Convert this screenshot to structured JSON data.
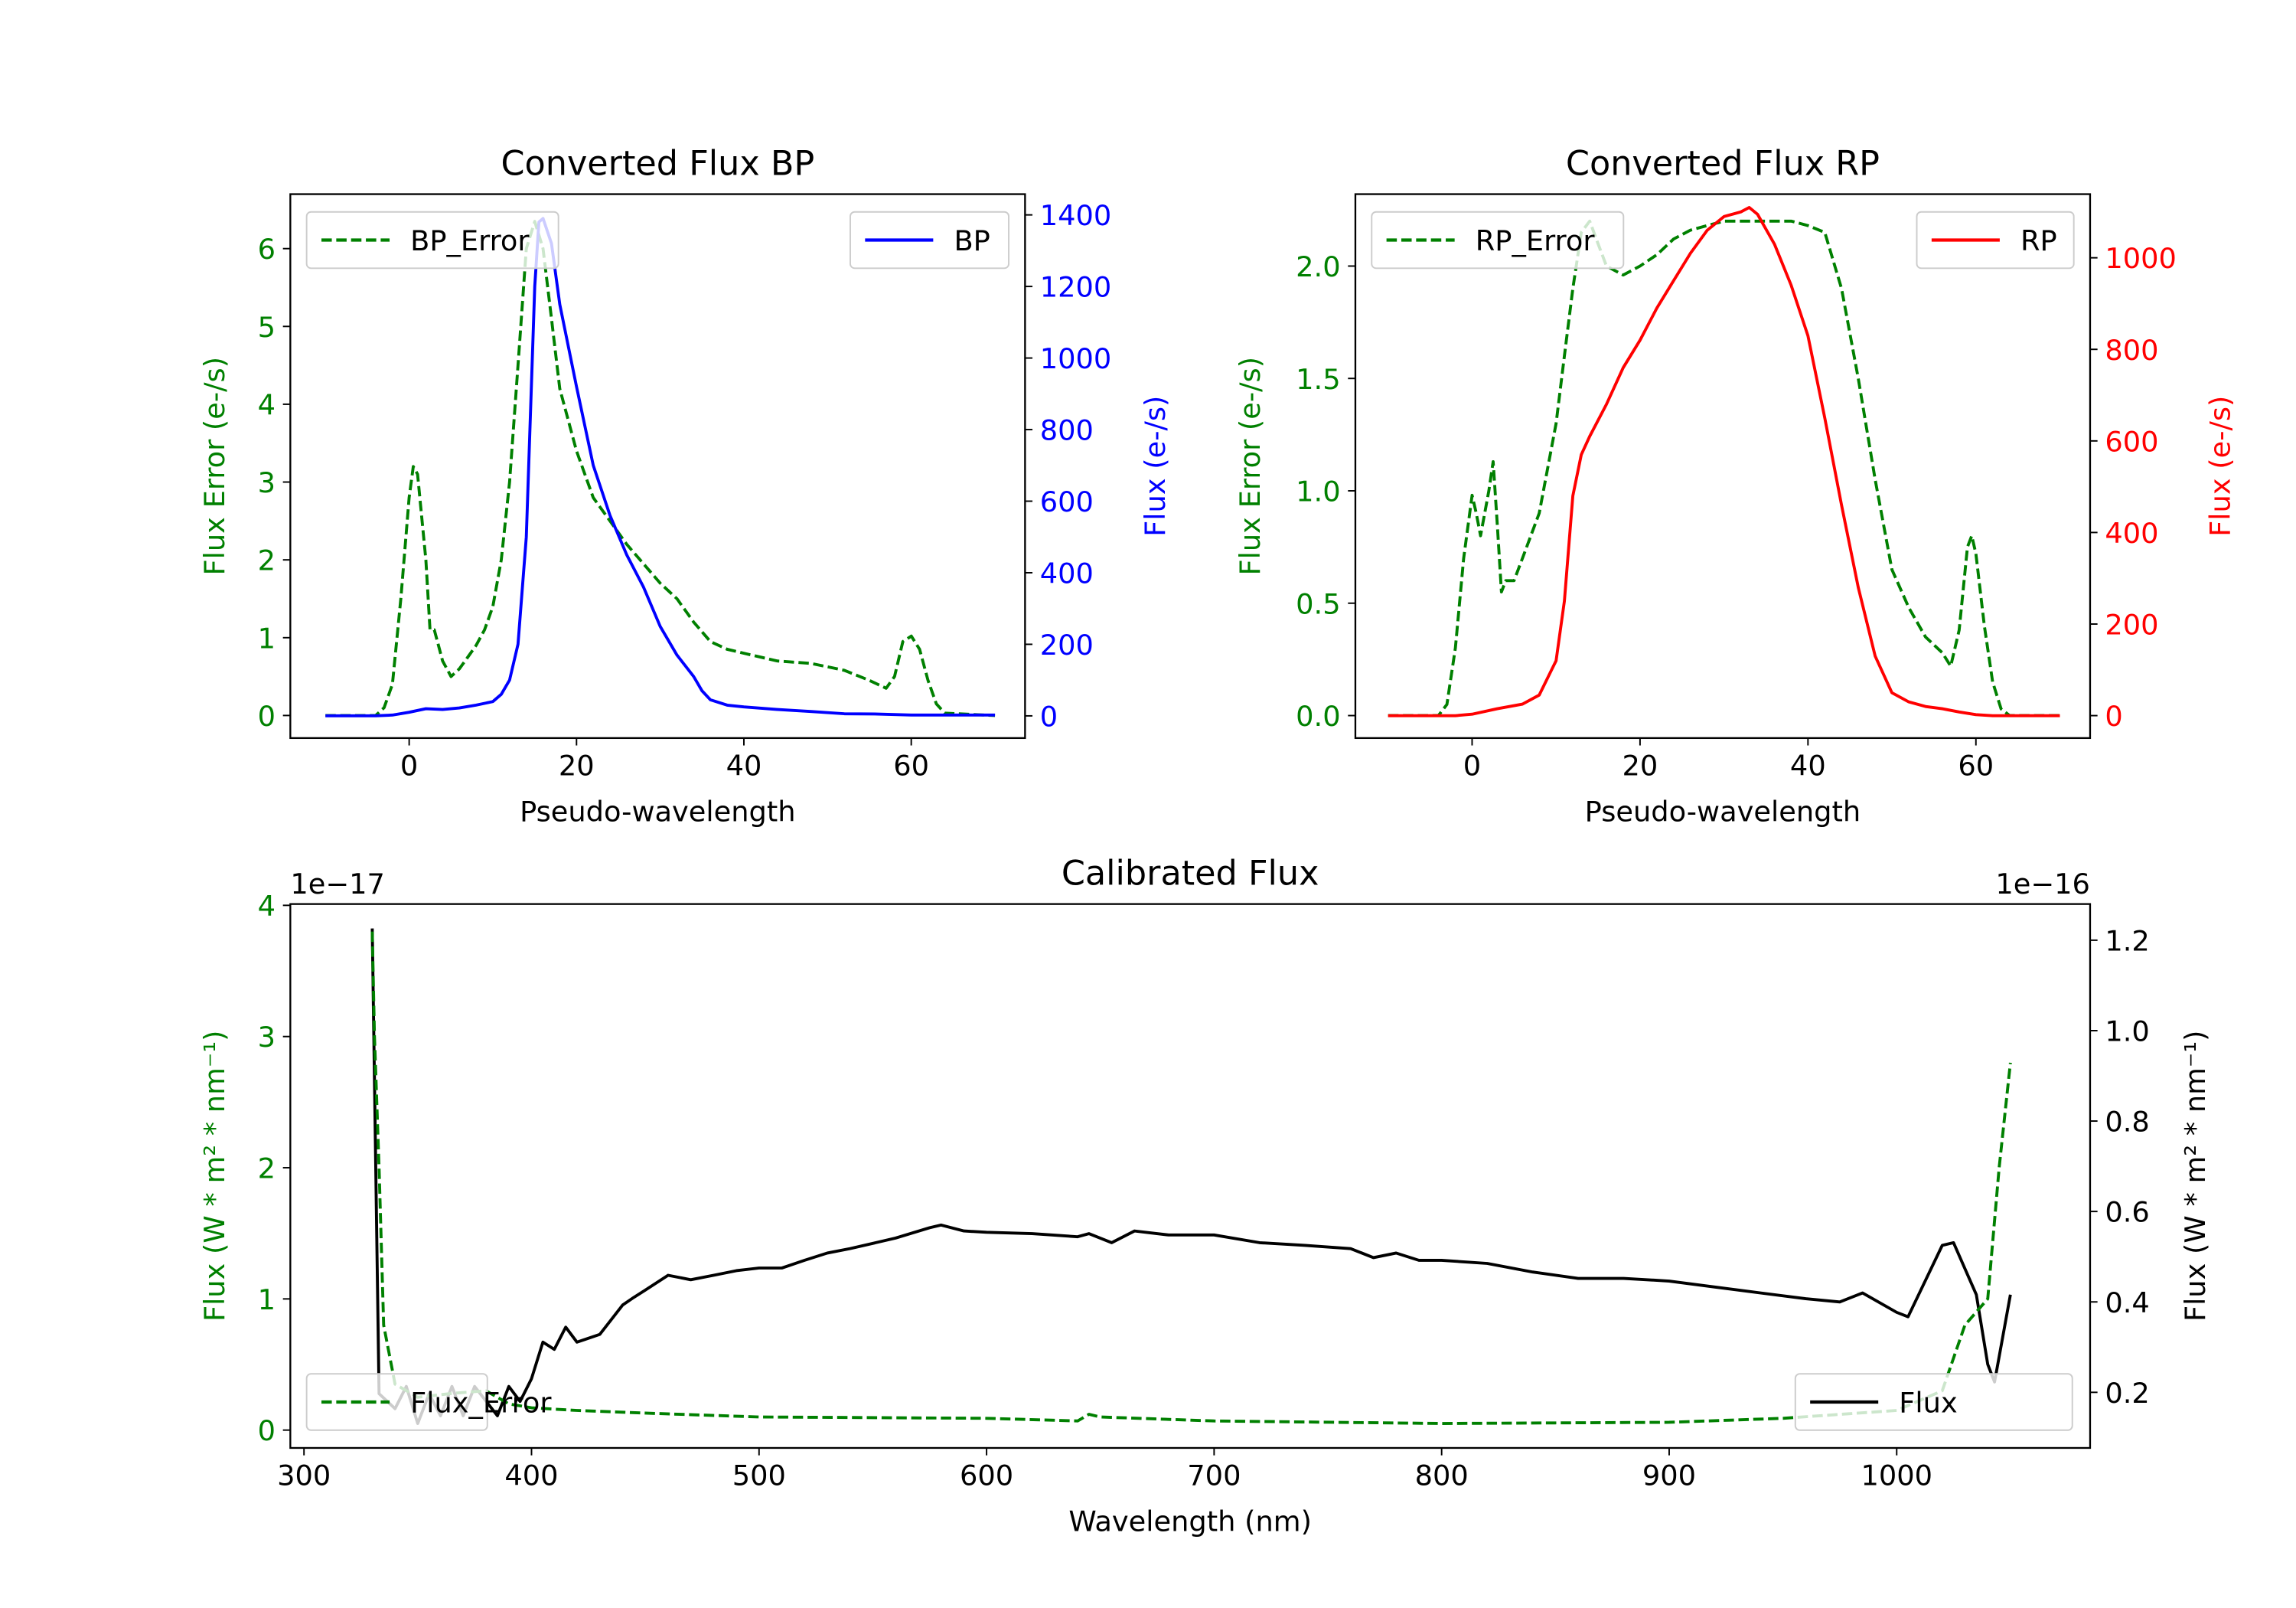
{
  "chart_data": [
    {
      "type": "line",
      "title": "Converted Flux BP",
      "xlabel": "Pseudo-wavelength",
      "ylabel_left": "Flux Error (e-/s)",
      "ylabel_right": "Flux (e-/s)",
      "xlim": [
        -14.2,
        73.6
      ],
      "ylim_left": [
        -0.29,
        6.7
      ],
      "ylim_right": [
        -62,
        1458
      ],
      "xticks": [
        0,
        20,
        40,
        60
      ],
      "yticks_left": [
        0,
        1,
        2,
        3,
        4,
        5,
        6
      ],
      "yticks_right": [
        0,
        200,
        400,
        600,
        800,
        1000,
        1200,
        1400
      ],
      "left_color": "#008000",
      "right_color": "#0000ff",
      "series": [
        {
          "name": "BP_Error",
          "axis": "left",
          "style": "dashed",
          "color": "#008000",
          "legend": "top-left",
          "x": [
            -10,
            -4,
            -3,
            -2,
            -1,
            0,
            0.5,
            1,
            2,
            2.5,
            3,
            4,
            5,
            6,
            7,
            8,
            9,
            10,
            11,
            12,
            13,
            14,
            15,
            16,
            17,
            18,
            20,
            22,
            24,
            26,
            28,
            30,
            32,
            34,
            36,
            38,
            40,
            44,
            48,
            52,
            55,
            57,
            58,
            59,
            60,
            61,
            62,
            63,
            64,
            70
          ],
          "y": [
            0,
            0,
            0.1,
            0.4,
            1.5,
            2.8,
            3.2,
            3.1,
            2.0,
            1.1,
            1.1,
            0.7,
            0.5,
            0.6,
            0.75,
            0.9,
            1.1,
            1.4,
            2.0,
            3.0,
            4.5,
            6.0,
            6.35,
            6.0,
            5.1,
            4.2,
            3.4,
            2.8,
            2.5,
            2.2,
            1.95,
            1.7,
            1.5,
            1.2,
            0.95,
            0.85,
            0.8,
            0.7,
            0.67,
            0.58,
            0.45,
            0.35,
            0.5,
            0.95,
            1.02,
            0.85,
            0.45,
            0.15,
            0.03,
            0
          ]
        },
        {
          "name": "BP",
          "axis": "right",
          "style": "solid",
          "color": "#0000ff",
          "legend": "top-right",
          "x": [
            -10,
            -4,
            -2,
            0,
            2,
            4,
            6,
            8,
            10,
            11,
            12,
            13,
            14,
            15,
            15.5,
            16,
            17,
            18,
            20,
            22,
            24,
            26,
            28,
            30,
            32,
            34,
            35,
            36,
            38,
            40,
            44,
            48,
            52,
            56,
            60,
            62,
            70
          ],
          "y": [
            0,
            0,
            2,
            10,
            20,
            18,
            22,
            30,
            40,
            60,
            100,
            200,
            500,
            1200,
            1380,
            1390,
            1320,
            1150,
            920,
            700,
            560,
            450,
            360,
            250,
            170,
            110,
            70,
            45,
            30,
            25,
            18,
            12,
            6,
            5,
            2,
            2,
            2
          ]
        }
      ]
    },
    {
      "type": "line",
      "title": "Converted Flux RP",
      "xlabel": "Pseudo-wavelength",
      "ylabel_left": "Flux Error (e-/s)",
      "ylabel_right": "Flux (e-/s)",
      "xlim": [
        -13.9,
        73.6
      ],
      "ylim_left": [
        -0.1,
        2.32
      ],
      "ylim_right": [
        -49,
        1139
      ],
      "xticks": [
        0,
        20,
        40,
        60
      ],
      "yticks_left": [
        0.0,
        0.5,
        1.0,
        1.5,
        2.0
      ],
      "yticks_right": [
        0,
        200,
        400,
        600,
        800,
        1000
      ],
      "left_color": "#008000",
      "right_color": "#ff0000",
      "series": [
        {
          "name": "RP_Error",
          "axis": "left",
          "style": "dashed",
          "color": "#008000",
          "legend": "top-left",
          "x": [
            -10,
            -4,
            -3,
            -2,
            -1,
            0,
            0.5,
            1,
            2,
            2.5,
            3,
            3.5,
            4,
            5,
            6,
            8,
            10,
            11,
            12,
            13,
            14,
            15,
            16,
            18,
            20,
            22,
            24,
            26,
            28,
            30,
            32,
            34,
            36,
            38,
            40,
            42,
            44,
            46,
            48,
            50,
            52,
            54,
            56,
            57,
            58,
            59,
            59.5,
            60,
            61,
            62,
            63,
            64,
            70
          ],
          "y": [
            0,
            0,
            0.05,
            0.3,
            0.7,
            0.98,
            0.9,
            0.8,
            1.0,
            1.13,
            0.85,
            0.55,
            0.6,
            0.6,
            0.7,
            0.9,
            1.3,
            1.6,
            1.9,
            2.15,
            2.2,
            2.1,
            2.0,
            1.96,
            2.0,
            2.05,
            2.12,
            2.16,
            2.18,
            2.2,
            2.2,
            2.2,
            2.2,
            2.2,
            2.18,
            2.15,
            1.9,
            1.5,
            1.05,
            0.65,
            0.48,
            0.35,
            0.28,
            0.22,
            0.38,
            0.75,
            0.8,
            0.72,
            0.4,
            0.15,
            0.03,
            0,
            0
          ]
        },
        {
          "name": "RP",
          "axis": "right",
          "style": "solid",
          "color": "#ff0000",
          "legend": "top-right",
          "x": [
            -10,
            -2,
            0,
            3,
            6,
            8,
            10,
            11,
            12,
            13,
            14,
            16,
            18,
            20,
            22,
            24,
            26,
            28,
            30,
            32,
            33,
            34,
            36,
            38,
            40,
            42,
            44,
            46,
            48,
            50,
            52,
            54,
            56,
            58,
            60,
            62,
            70
          ],
          "y": [
            0,
            0,
            3,
            15,
            25,
            45,
            120,
            250,
            480,
            570,
            610,
            680,
            760,
            820,
            890,
            950,
            1010,
            1060,
            1090,
            1100,
            1110,
            1095,
            1030,
            940,
            830,
            650,
            460,
            280,
            130,
            50,
            30,
            20,
            15,
            8,
            2,
            0,
            0
          ]
        }
      ]
    },
    {
      "type": "line",
      "title": "Calibrated Flux",
      "xlabel": "Wavelength (nm)",
      "ylabel_left": "Flux (W * m² * nm⁻¹)",
      "ylabel_right": "Flux (W * m² * nm⁻¹)",
      "offset_left": "1e−17",
      "offset_right": "1e−16",
      "xlim": [
        294,
        1085
      ],
      "ylim_left": [
        -0.136,
        4.01
      ],
      "ylim_right": [
        0.077,
        1.28
      ],
      "xticks": [
        300,
        400,
        500,
        600,
        700,
        800,
        900,
        1000
      ],
      "yticks_left": [
        0,
        1,
        2,
        3,
        4
      ],
      "yticks_right": [
        0.2,
        0.4,
        0.6,
        0.8,
        1.0,
        1.2
      ],
      "left_color": "#008000",
      "right_color": "#000000",
      "series": [
        {
          "name": "Flux",
          "axis": "right",
          "style": "solid",
          "color": "#000000",
          "legend": "lower-left",
          "x": [
            330,
            333,
            340,
            345,
            350,
            355,
            360,
            365,
            370,
            375,
            385,
            390,
            395,
            400,
            405,
            410,
            415,
            420,
            430,
            440,
            445,
            450,
            460,
            470,
            480,
            490,
            500,
            510,
            520,
            530,
            540,
            560,
            575,
            580,
            590,
            600,
            620,
            640,
            645,
            655,
            665,
            680,
            700,
            720,
            740,
            760,
            770,
            780,
            790,
            800,
            820,
            840,
            860,
            880,
            900,
            920,
            940,
            960,
            975,
            985,
            1000,
            1005,
            1020,
            1025,
            1035,
            1040,
            1043,
            1050
          ],
          "y": [
            1.226,
            0.197,
            0.164,
            0.213,
            0.131,
            0.197,
            0.148,
            0.213,
            0.148,
            0.213,
            0.148,
            0.213,
            0.18,
            0.23,
            0.311,
            0.295,
            0.344,
            0.311,
            0.328,
            0.393,
            0.41,
            0.426,
            0.459,
            0.449,
            0.459,
            0.469,
            0.475,
            0.475,
            0.492,
            0.508,
            0.518,
            0.541,
            0.564,
            0.57,
            0.557,
            0.554,
            0.551,
            0.544,
            0.551,
            0.531,
            0.557,
            0.548,
            0.548,
            0.531,
            0.525,
            0.518,
            0.498,
            0.508,
            0.492,
            0.492,
            0.485,
            0.466,
            0.452,
            0.452,
            0.446,
            0.433,
            0.42,
            0.407,
            0.4,
            0.42,
            0.377,
            0.367,
            0.525,
            0.531,
            0.416,
            0.262,
            0.223,
            0.416
          ]
        },
        {
          "name": "Flux_Error",
          "axis": "left",
          "style": "dashed",
          "color": "#008000",
          "legend": "lower-right",
          "x": [
            330,
            331,
            333,
            335,
            340,
            350,
            365,
            380,
            390,
            400,
            420,
            450,
            500,
            600,
            640,
            645,
            650,
            700,
            800,
            900,
            950,
            1000,
            1020,
            1030,
            1040,
            1045,
            1050
          ],
          "y": [
            3.8,
            3.0,
            2.0,
            0.8,
            0.35,
            0.25,
            0.28,
            0.3,
            0.2,
            0.17,
            0.15,
            0.13,
            0.1,
            0.09,
            0.07,
            0.12,
            0.1,
            0.07,
            0.05,
            0.06,
            0.09,
            0.15,
            0.3,
            0.8,
            1.0,
            2.0,
            2.8
          ]
        }
      ]
    }
  ]
}
